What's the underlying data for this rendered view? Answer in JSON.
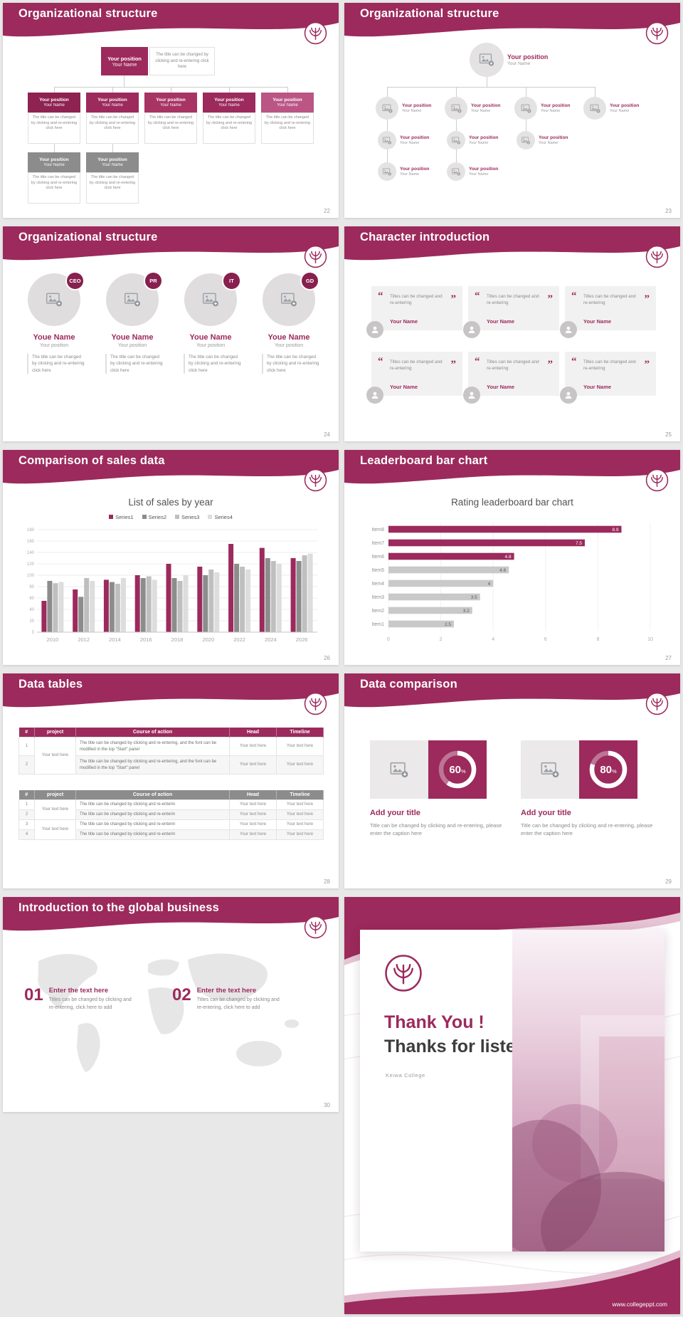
{
  "theme": {
    "accent": "#9C2A5C",
    "accent_dark": "#87204E",
    "accent_light": "#BA5584",
    "gray_box": "#8C8C8C",
    "bar_gray": "#C9C9C9",
    "panel_gray": "#EBE9E9",
    "line_gray": "#CCCCCC"
  },
  "slides": [
    {
      "title": "Organizational structure",
      "page_number": "22",
      "position": "Your position",
      "name": "Your Name",
      "desc": "The title can be changed by clicking and re-entering click here"
    },
    {
      "title": "Organizational structure",
      "page_number": "23",
      "position": "Your position",
      "name": "Your Name"
    },
    {
      "title": "Organizational structure",
      "page_number": "24",
      "name": "Youe Name",
      "position": "Your position",
      "desc": "The title can be changed by clicking and re-entering click here",
      "badges": [
        "CEO",
        "PR",
        "IT",
        "GD"
      ]
    },
    {
      "title": "Character introduction",
      "page_number": "25",
      "quote": "Titles can be changed and re-entering",
      "name": "Your Name"
    },
    {
      "title": "Comparison of sales data",
      "page_number": "26",
      "chart_data": {
        "type": "bar",
        "title": "List of sales by year",
        "categories": [
          "2010",
          "2012",
          "2014",
          "2016",
          "2018",
          "2020",
          "2022",
          "2024",
          "2026"
        ],
        "series": [
          {
            "name": "Series1",
            "color": "#9C2A5C",
            "values": [
              55,
              75,
              92,
              100,
              120,
              115,
              155,
              148,
              130
            ]
          },
          {
            "name": "Series2",
            "color": "#8C8C8C",
            "values": [
              90,
              62,
              88,
              95,
              95,
              100,
              120,
              130,
              125
            ]
          },
          {
            "name": "Series3",
            "color": "#BFBFBF",
            "values": [
              86,
              95,
              85,
              98,
              90,
              110,
              115,
              125,
              135
            ]
          },
          {
            "name": "Series4",
            "color": "#DDDDDD",
            "values": [
              88,
              90,
              95,
              92,
              100,
              105,
              110,
              120,
              138
            ]
          }
        ],
        "ylim": [
          0,
          180
        ],
        "ytick_step": 20,
        "legend_position": "top",
        "grid": true
      }
    },
    {
      "title": "Leaderboard bar chart",
      "page_number": "27",
      "chart_data": {
        "type": "bar-horizontal",
        "title": "Rating leaderboard bar chart",
        "categories": [
          "Item8",
          "Item7",
          "Item6",
          "Item5",
          "Item4",
          "Item3",
          "Item2",
          "Item1"
        ],
        "values": [
          8.9,
          7.5,
          4.8,
          4.6,
          4,
          3.5,
          3.2,
          2.5
        ],
        "bar_colors": [
          "#9C2A5C",
          "#9C2A5C",
          "#9C2A5C",
          "#C9C9C9",
          "#C9C9C9",
          "#C9C9C9",
          "#C9C9C9",
          "#C9C9C9"
        ],
        "xlim": [
          0,
          10
        ],
        "xticks": [
          0,
          2,
          4,
          6,
          8,
          10
        ],
        "grid": true
      }
    },
    {
      "title": "Data tables",
      "page_number": "28",
      "table1": {
        "headers": [
          "#",
          "project",
          "Course of action",
          "Head",
          "Timeline"
        ],
        "project": "Your text here",
        "rows": [
          {
            "num": "1",
            "course": "The title can be changed by clicking and re-entering, and the font can be modified in the top \"Start\" panel",
            "head": "Your text here",
            "timeline": "Your text here"
          },
          {
            "num": "2",
            "course": "The title can be changed by clicking and re-entering, and the font can be modified in the top \"Start\" panel",
            "head": "Your text here",
            "timeline": "Your text here"
          }
        ]
      },
      "table2": {
        "headers": [
          "#",
          "project",
          "Course of action",
          "Head",
          "Timeline"
        ],
        "project_a": "Your text here",
        "project_b": "Your text here",
        "rows": [
          {
            "num": "1",
            "course": "The title can be changed by clicking and re-enterin",
            "head": "Your text here",
            "timeline": "Your text here"
          },
          {
            "num": "2",
            "course": "The title can be changed by clicking and re-enterin",
            "head": "Your text here",
            "timeline": "Your text here"
          },
          {
            "num": "3",
            "course": "The title can be changed by clicking and re-enterin",
            "head": "Your text here",
            "timeline": "Your text here"
          },
          {
            "num": "4",
            "course": "The title can be changed by clicking and re-enterin",
            "head": "Your text here",
            "timeline": "Your text here"
          }
        ]
      }
    },
    {
      "title": "Data comparison",
      "page_number": "29",
      "panels": [
        {
          "percent": 60,
          "title": "Add your title",
          "caption": "Title can be changed by clicking and re-entering, please enter the caption here"
        },
        {
          "percent": 80,
          "title": "Add your title",
          "caption": "Title can be changed by clicking and re-entering, please enter the caption here"
        }
      ]
    },
    {
      "title": "Introduction to the global business",
      "page_number": "30",
      "items": [
        {
          "num": "01",
          "title": "Enter the text here",
          "desc": "Titles can be changed by clicking and re-entering, click here to add"
        },
        {
          "num": "02",
          "title": "Enter the text here",
          "desc": "Titles can be changed by clicking and re-entering, click here to add"
        }
      ]
    },
    {
      "title_line1": "Thank You !",
      "title_line2": "Thanks for listening!",
      "subtitle": "Keiwa College",
      "url": "www.collegeppt.com"
    }
  ]
}
